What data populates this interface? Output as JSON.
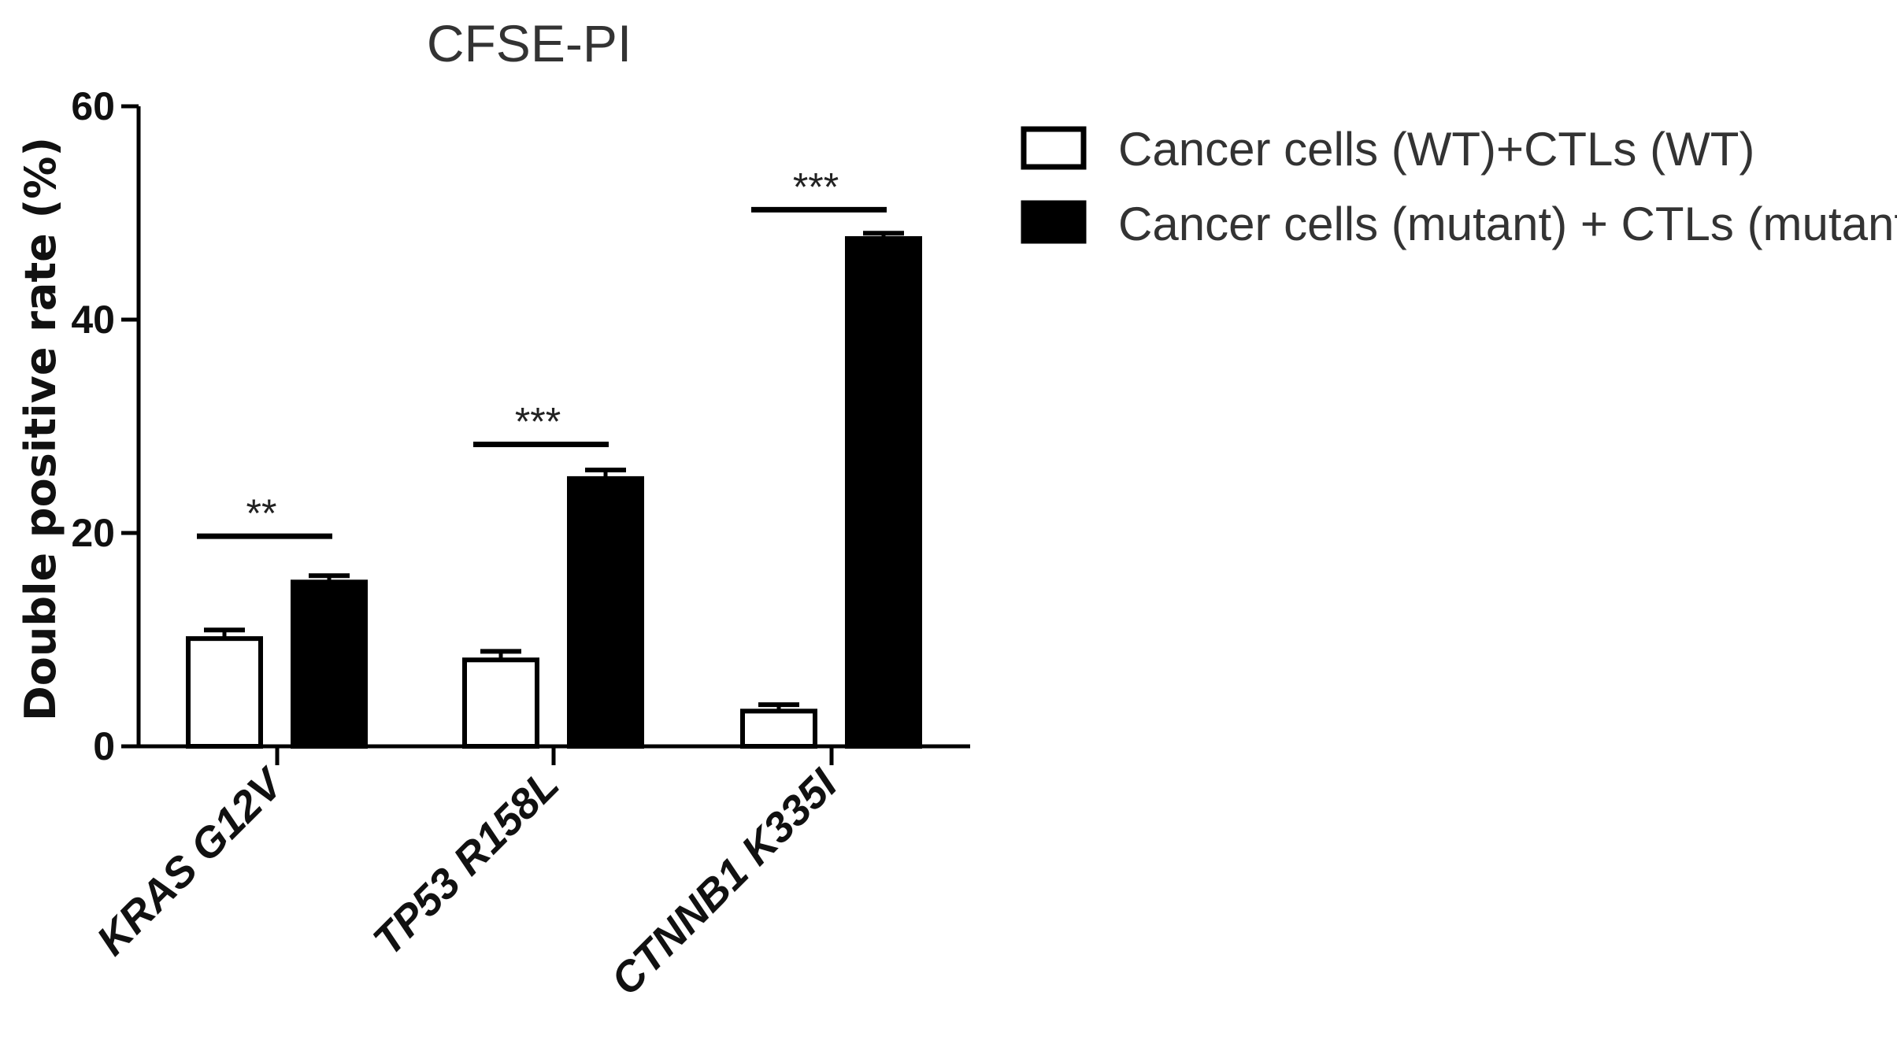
{
  "chart_data": {
    "type": "bar",
    "title": "CFSE-PI",
    "ylabel": "Double positive rate (%)",
    "xlabel": "",
    "ylim": [
      0,
      60
    ],
    "yticks": [
      0,
      20,
      40,
      60
    ],
    "categories": [
      "KRAS G12V",
      "TP53 R158L",
      "CTNNB1 K335I"
    ],
    "series": [
      {
        "name": "Cancer cells (WT)+CTLs (WT)",
        "fill": "#ffffff",
        "values": [
          10.1,
          8.1,
          3.3
        ],
        "errors": [
          0.8,
          0.8,
          0.6
        ]
      },
      {
        "name": "Cancer cells (mutant) + CTLs (mutant)",
        "fill": "#000000",
        "values": [
          15.4,
          25.1,
          47.6
        ],
        "errors": [
          0.6,
          0.8,
          0.5
        ]
      }
    ],
    "significance": [
      {
        "category": "KRAS G12V",
        "label": "**",
        "y": 19.7
      },
      {
        "category": "TP53 R158L",
        "label": "***",
        "y": 28.3
      },
      {
        "category": "CTNNB1 K335I",
        "label": "***",
        "y": 50.3
      }
    ],
    "legend_position": "top-right",
    "grid": false
  }
}
